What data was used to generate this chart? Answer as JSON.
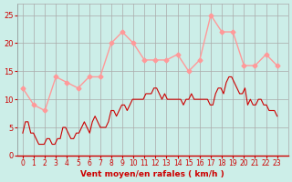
{
  "bg_color": "#cceee8",
  "grid_color": "#aaaaaa",
  "xlabel": "Vent moyen/en rafales ( km/h )",
  "xlabel_color": "#cc0000",
  "tick_color": "#cc0000",
  "ylim": [
    0,
    27
  ],
  "yticks": [
    0,
    5,
    10,
    15,
    20,
    25
  ],
  "xticks": [
    0,
    1,
    2,
    3,
    4,
    5,
    6,
    7,
    8,
    9,
    10,
    11,
    12,
    13,
    14,
    15,
    16,
    17,
    18,
    19,
    20,
    21,
    22,
    23
  ],
  "rafales_x": [
    0,
    1,
    2,
    3,
    4,
    5,
    6,
    7,
    8,
    9,
    10,
    11,
    12,
    13,
    14,
    15,
    16,
    17,
    18,
    19,
    20,
    21,
    22,
    23
  ],
  "rafales_y": [
    12,
    9,
    8,
    14,
    13,
    12,
    14,
    14,
    20,
    22,
    20,
    17,
    17,
    17,
    18,
    15,
    17,
    25,
    22,
    22,
    16,
    16,
    18,
    16
  ],
  "rafales_color": "#ff9999",
  "moyen_color": "#cc0000",
  "moyen_y": [
    4,
    6,
    6,
    4,
    4,
    3,
    2,
    2,
    2,
    3,
    3,
    2,
    2,
    3,
    3,
    5,
    5,
    4,
    3,
    3,
    4,
    4,
    5,
    6,
    5,
    4,
    6,
    7,
    6,
    5,
    5,
    5,
    6,
    8,
    8,
    7,
    8,
    9,
    9,
    8,
    9,
    10,
    10,
    10,
    10,
    10,
    11,
    11,
    11,
    12,
    12,
    11,
    10,
    11,
    10,
    10,
    10,
    10,
    10,
    10,
    9,
    10,
    10,
    11,
    10,
    10,
    10,
    10,
    10,
    10,
    9,
    9,
    11,
    12,
    12,
    11,
    13,
    14,
    14,
    13,
    12,
    11,
    11,
    12,
    9,
    10,
    9,
    9,
    10,
    10,
    9,
    9,
    8,
    8,
    8,
    7
  ]
}
